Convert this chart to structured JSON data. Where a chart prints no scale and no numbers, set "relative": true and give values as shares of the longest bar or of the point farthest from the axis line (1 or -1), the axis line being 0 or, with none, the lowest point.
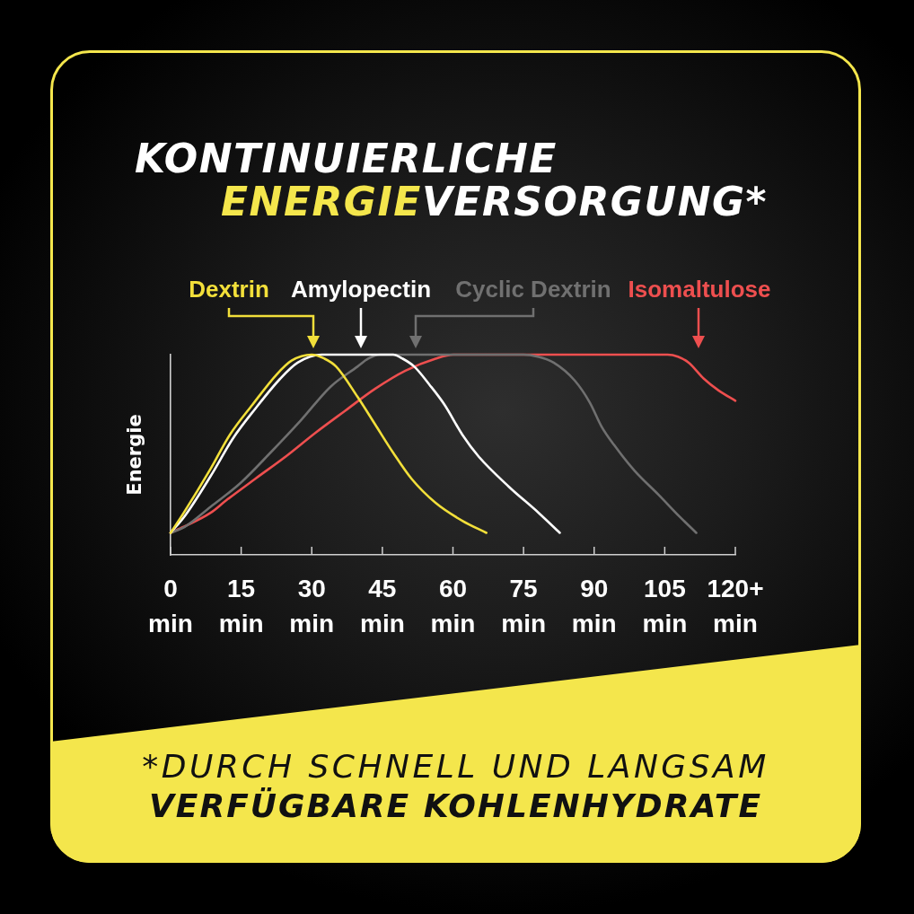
{
  "chart_data": {
    "type": "line",
    "title": "KONTINUIERLICHE\nENERGIEVERSORGUNG*",
    "ylabel": "Energie",
    "relative": true,
    "marker": "none",
    "xlim": [
      0,
      120
    ],
    "xticks": [
      {
        "value": 0,
        "label": "0\nmin"
      },
      {
        "value": 15,
        "label": "15\nmin"
      },
      {
        "value": 30,
        "label": "30\nmin"
      },
      {
        "value": 45,
        "label": "45\nmin"
      },
      {
        "value": 60,
        "label": "60\nmin"
      },
      {
        "value": 75,
        "label": "75\nmin"
      },
      {
        "value": 90,
        "label": "90\nmin"
      },
      {
        "value": 105,
        "label": "105\nmin"
      },
      {
        "value": 120,
        "label": "120+\nmin"
      }
    ],
    "annotations": [
      "*DURCH SCHNELL UND LANGSAM\nVERFÜGBARE KOHLENHYDRATE"
    ],
    "series": [
      {
        "name": "Dextrin",
        "color": "#f2df3a",
        "x": [
          0,
          2.8,
          8.5,
          12.6,
          17.4,
          22.5,
          25.7,
          30,
          32.7,
          35.2,
          39.7,
          43.5,
          47.3,
          51.2,
          56.3,
          62,
          67.1
        ],
        "values": [
          0.11,
          0.21,
          0.43,
          0.6,
          0.75,
          0.9,
          0.97,
          1,
          0.98,
          0.94,
          0.79,
          0.65,
          0.51,
          0.38,
          0.26,
          0.17,
          0.11
        ]
      },
      {
        "name": "Amylopectin",
        "color": "#ffffff",
        "x": [
          0,
          3.2,
          9.2,
          13.2,
          18,
          23.3,
          27,
          32.1,
          40,
          47.3,
          49.3,
          51.8,
          55,
          58.2,
          62,
          65.5,
          71.9,
          78.2,
          82.7
        ],
        "values": [
          0.11,
          0.2,
          0.42,
          0.58,
          0.73,
          0.88,
          0.96,
          1,
          1,
          1,
          0.98,
          0.94,
          0.85,
          0.75,
          0.6,
          0.49,
          0.34,
          0.21,
          0.11
        ]
      },
      {
        "name": "Cyclic Dextrin",
        "color": "#707070",
        "x": [
          0,
          3,
          8.5,
          14.9,
          21.2,
          27.6,
          34,
          39.7,
          42,
          44.5,
          60,
          75,
          78,
          81.4,
          85.9,
          89.1,
          91.6,
          94.2,
          98.6,
          103.7,
          108.2,
          111.7
        ],
        "values": [
          0.11,
          0.14,
          0.24,
          0.36,
          0.51,
          0.67,
          0.84,
          0.94,
          0.98,
          1,
          1,
          1,
          0.99,
          0.96,
          0.87,
          0.76,
          0.64,
          0.55,
          0.42,
          0.3,
          0.19,
          0.11
        ]
      },
      {
        "name": "Isomaltulose",
        "color": "#ee4f4f",
        "x": [
          0,
          2.8,
          8.5,
          11.7,
          18,
          24.4,
          30.8,
          37.1,
          43.5,
          49.9,
          56.3,
          60.1,
          80,
          105.6,
          107.8,
          110.1,
          113.3,
          116.5,
          120
        ],
        "values": [
          0.11,
          0.14,
          0.21,
          0.27,
          0.38,
          0.49,
          0.61,
          0.72,
          0.83,
          0.92,
          0.98,
          1,
          1,
          1,
          0.99,
          0.96,
          0.88,
          0.82,
          0.77
        ]
      }
    ]
  }
}
